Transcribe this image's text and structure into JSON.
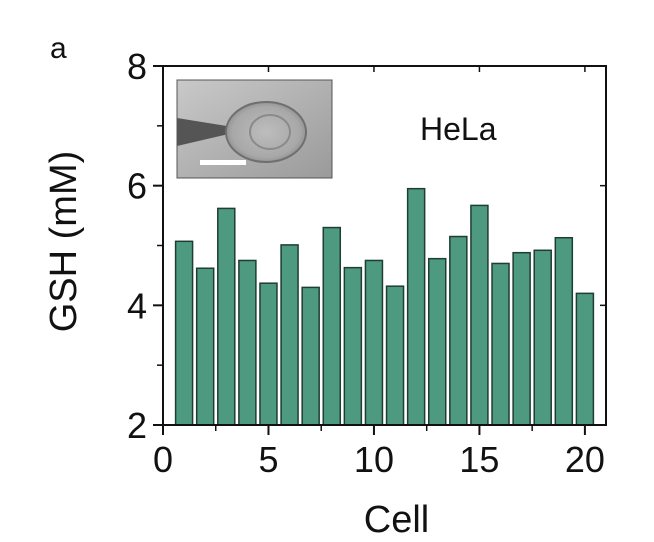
{
  "panel_label": "a",
  "chart_data": {
    "type": "bar",
    "title": "",
    "xlabel": "Cell",
    "ylabel": "GSH (mM)",
    "annotation": "HeLa",
    "xlim": [
      0,
      21
    ],
    "ylim": [
      2,
      8
    ],
    "xticks": [
      0,
      5,
      10,
      15,
      20
    ],
    "yticks": [
      2,
      4,
      6,
      8
    ],
    "x": [
      1,
      2,
      3,
      4,
      5,
      6,
      7,
      8,
      9,
      10,
      11,
      12,
      13,
      14,
      15,
      16,
      17,
      18,
      19,
      20
    ],
    "values": [
      5.07,
      4.62,
      5.62,
      4.75,
      4.37,
      5.01,
      4.3,
      5.3,
      4.63,
      4.75,
      4.32,
      5.95,
      4.78,
      5.15,
      5.67,
      4.7,
      4.88,
      4.92,
      5.13,
      4.2
    ],
    "bar_color": "#4d9a80",
    "grid": false,
    "inset": "microscope image of a HeLa cell with scale bar"
  }
}
